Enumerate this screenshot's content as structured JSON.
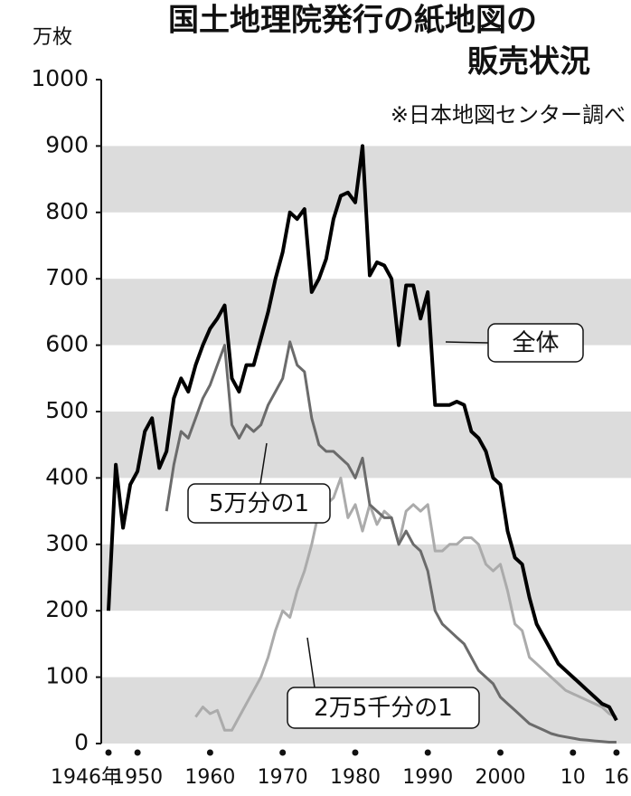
{
  "chart_data": {
    "type": "line",
    "title": [
      "国土地理院発行の紙地図の",
      "販売状況"
    ],
    "source": "※日本地図センター調べ",
    "y_unit": "万枚",
    "x": [
      1946,
      1947,
      1948,
      1949,
      1950,
      1951,
      1952,
      1953,
      1954,
      1955,
      1956,
      1957,
      1958,
      1959,
      1960,
      1961,
      1962,
      1963,
      1964,
      1965,
      1966,
      1967,
      1968,
      1969,
      1970,
      1971,
      1972,
      1973,
      1974,
      1975,
      1976,
      1977,
      1978,
      1979,
      1980,
      1981,
      1982,
      1983,
      1984,
      1985,
      1986,
      1987,
      1988,
      1989,
      1990,
      1991,
      1992,
      1993,
      1994,
      1995,
      1996,
      1997,
      1998,
      1999,
      2000,
      2001,
      2002,
      2003,
      2004,
      2005,
      2006,
      2007,
      2008,
      2009,
      2010,
      2011,
      2012,
      2013,
      2014,
      2015,
      2016
    ],
    "series": [
      {
        "name": "全体",
        "color": "#000000",
        "values": [
          200,
          420,
          325,
          390,
          410,
          470,
          490,
          415,
          440,
          520,
          550,
          530,
          570,
          600,
          625,
          640,
          660,
          550,
          530,
          570,
          570,
          610,
          650,
          700,
          740,
          800,
          790,
          805,
          680,
          700,
          730,
          790,
          825,
          830,
          815,
          900,
          705,
          725,
          720,
          700,
          600,
          690,
          690,
          640,
          680,
          510,
          510,
          510,
          515,
          510,
          470,
          460,
          440,
          400,
          390,
          320,
          280,
          270,
          220,
          180,
          160,
          140,
          120,
          110,
          100,
          90,
          80,
          70,
          60,
          55,
          35
        ]
      },
      {
        "name": "5万分の1",
        "color": "#6b6b6b",
        "values": [
          null,
          null,
          null,
          null,
          null,
          null,
          null,
          null,
          350,
          420,
          470,
          460,
          490,
          520,
          540,
          570,
          600,
          480,
          460,
          480,
          470,
          480,
          510,
          530,
          550,
          605,
          570,
          560,
          490,
          450,
          440,
          440,
          430,
          420,
          400,
          430,
          360,
          350,
          340,
          340,
          300,
          320,
          300,
          290,
          260,
          200,
          180,
          170,
          160,
          150,
          130,
          110,
          100,
          90,
          70,
          60,
          50,
          40,
          30,
          25,
          20,
          15,
          12,
          10,
          8,
          6,
          5,
          4,
          3,
          2,
          2
        ]
      },
      {
        "name": "2万5千分の1",
        "color": "#ababab",
        "values": [
          null,
          null,
          null,
          null,
          null,
          null,
          null,
          null,
          null,
          null,
          null,
          null,
          40,
          55,
          45,
          50,
          20,
          20,
          40,
          60,
          80,
          100,
          130,
          170,
          200,
          190,
          230,
          260,
          300,
          350,
          360,
          370,
          400,
          340,
          360,
          320,
          360,
          330,
          350,
          340,
          300,
          350,
          360,
          350,
          360,
          290,
          290,
          300,
          300,
          310,
          310,
          300,
          270,
          260,
          270,
          230,
          180,
          170,
          130,
          120,
          110,
          100,
          90,
          80,
          75,
          70,
          65,
          60,
          55,
          45,
          40
        ]
      }
    ],
    "xlim": [
      1945,
      2018
    ],
    "xticks": [
      {
        "value": 1946,
        "label": "1946年"
      },
      1950,
      1960,
      1970,
      1980,
      1990,
      2000,
      {
        "value": 2010,
        "label": "10"
      },
      {
        "value": 2016,
        "label": "16"
      }
    ],
    "ylim": [
      0,
      1000
    ],
    "yticks": [
      0,
      100,
      200,
      300,
      400,
      500,
      600,
      700,
      800,
      900,
      1000
    ],
    "grid": "bands"
  }
}
